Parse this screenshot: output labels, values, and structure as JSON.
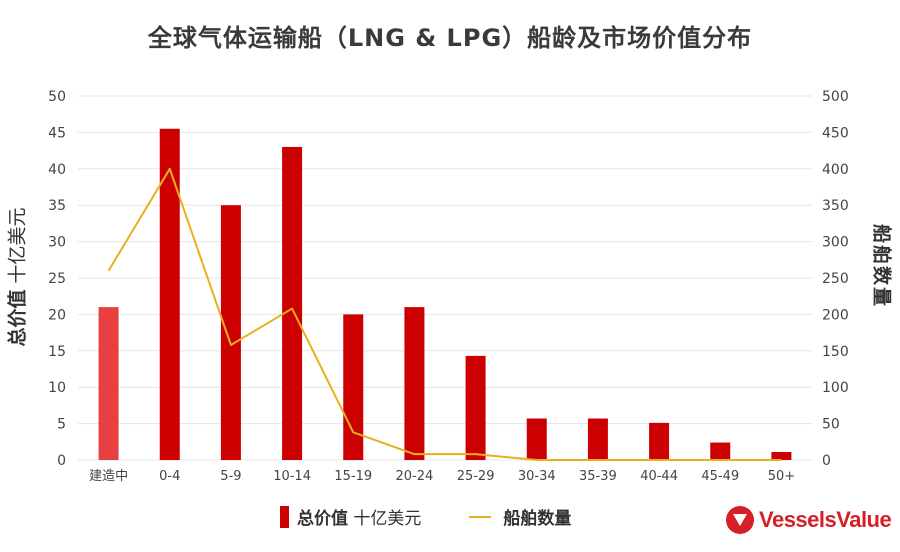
{
  "chart_data": {
    "type": "bar",
    "title": "全球气体运输船（LNG & LPG）船龄及市场价值分布",
    "categories": [
      "建造中",
      "0-4",
      "5-9",
      "10-14",
      "15-19",
      "20-24",
      "25-29",
      "30-34",
      "35-39",
      "40-44",
      "45-49",
      "50+"
    ],
    "ylabel_left": {
      "bold": "总价值",
      "normal": "十亿美元"
    },
    "ylabel_right": "船舶数量",
    "ylim_left": [
      0,
      50
    ],
    "ylim_right": [
      0,
      500
    ],
    "yticks_left": [
      "0",
      "5",
      "10",
      "15",
      "20",
      "25",
      "30",
      "35",
      "40",
      "45",
      "50"
    ],
    "yticks_right": [
      "0",
      "50",
      "100",
      "150",
      "200",
      "250",
      "300",
      "350",
      "400",
      "450",
      "500"
    ],
    "grid": true,
    "legend_position": "bottom",
    "series": [
      {
        "name": "总价值 十亿美元",
        "type": "bar",
        "axis": "left",
        "values": [
          21,
          45.5,
          35,
          43,
          20,
          21,
          14.3,
          5.7,
          5.7,
          5.1,
          2.4,
          1.1
        ]
      },
      {
        "name": "船舶数量",
        "type": "line",
        "axis": "right",
        "values": [
          260,
          400,
          158,
          208,
          38,
          8,
          8,
          0,
          0,
          0,
          0,
          0
        ]
      }
    ],
    "colors": {
      "bar": "#cc0000",
      "bar_first": "#e84040",
      "line": "#e8b021",
      "grid": "#e6e6e6"
    }
  },
  "legend": {
    "bar_bold": "总价值",
    "bar_normal": " 十亿美元",
    "line": "船舶数量"
  },
  "brand": {
    "name": "VesselsValue"
  }
}
